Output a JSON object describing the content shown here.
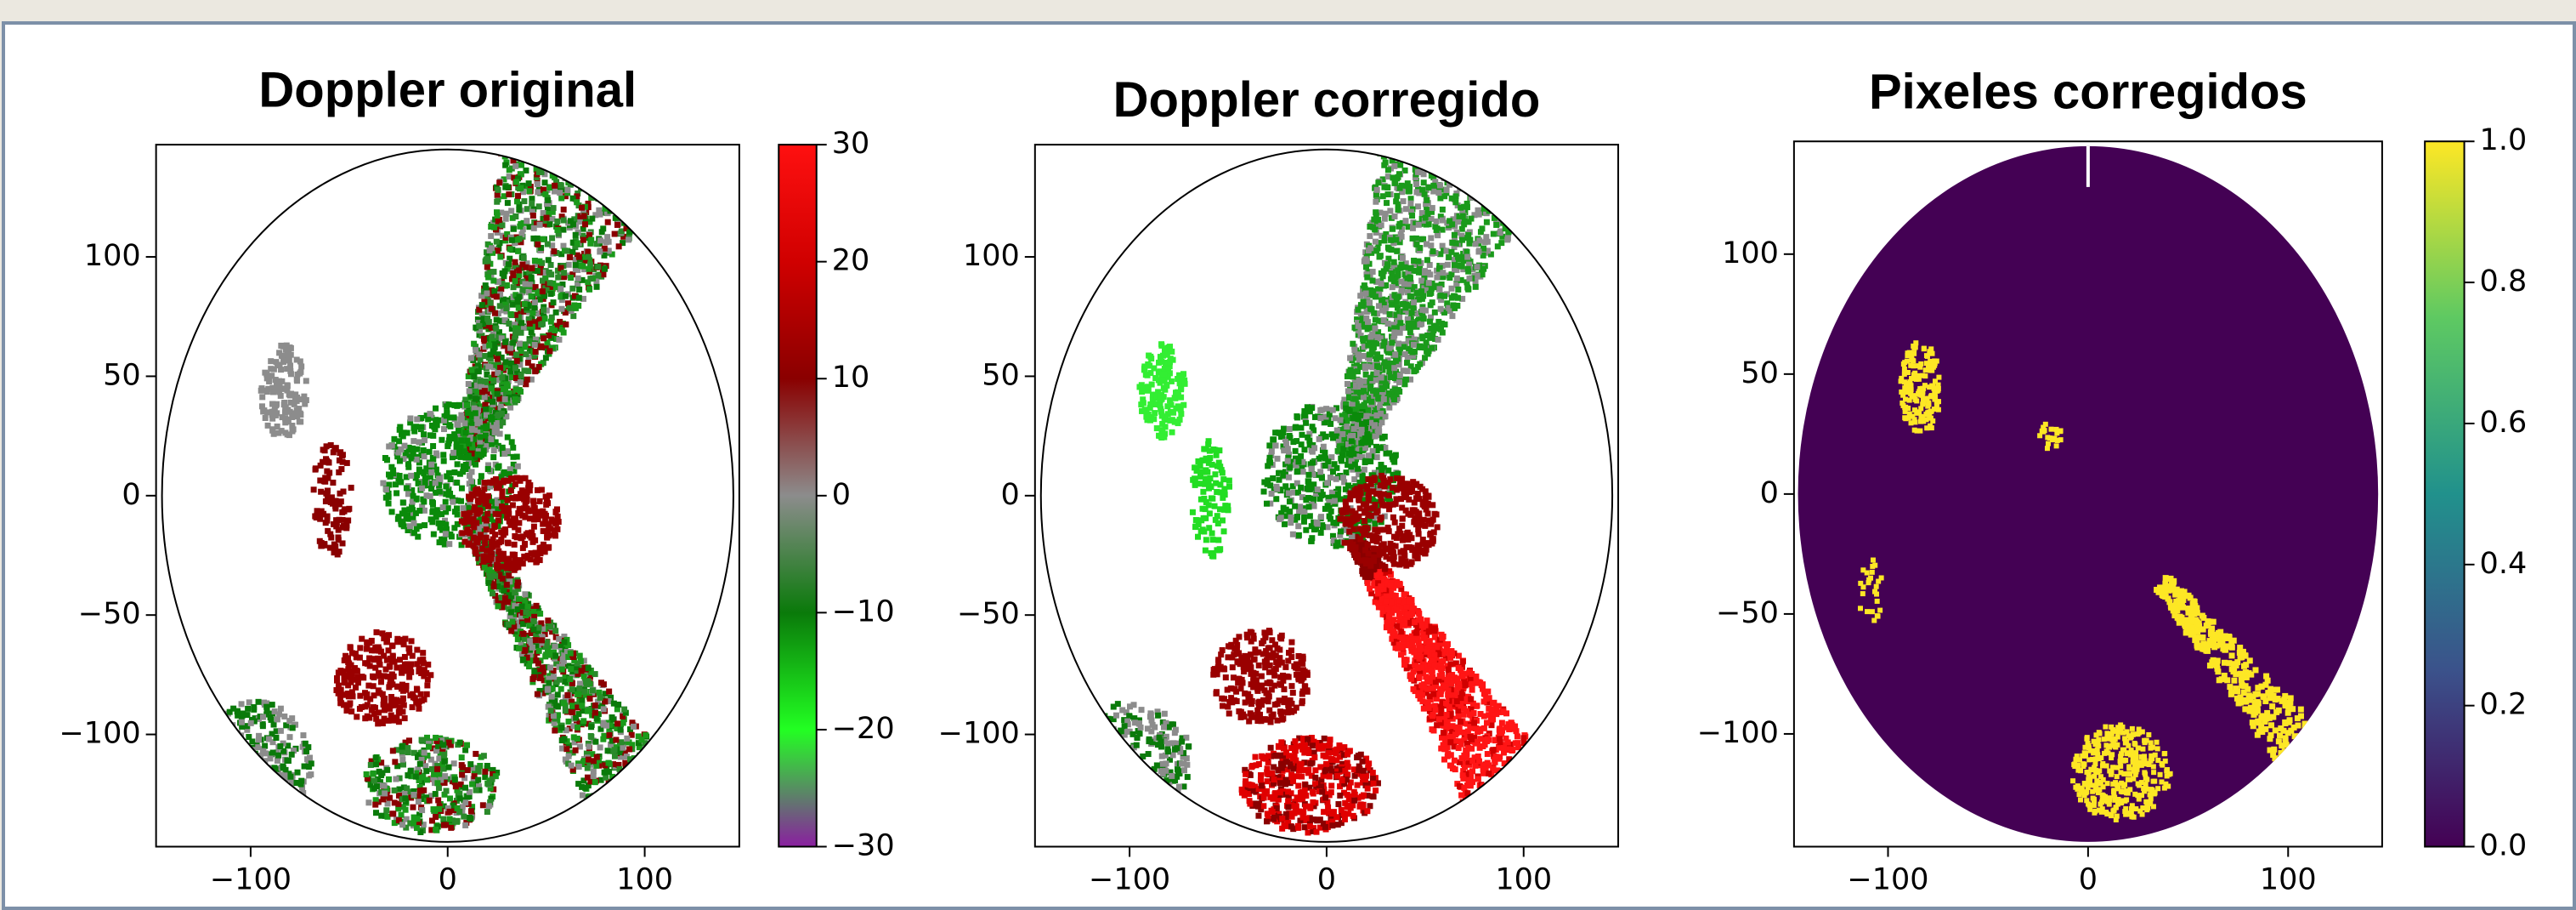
{
  "chart_data": [
    {
      "type": "image",
      "title": "Doppler original",
      "xlim": [
        -148,
        148
      ],
      "ylim": [
        -147,
        147
      ],
      "xticks": [
        {
          "value": -100,
          "label": "−100"
        },
        0,
        100
      ],
      "yticks": [
        {
          "value": -100,
          "label": "−100"
        },
        {
          "value": -50,
          "label": "−50"
        },
        0,
        50,
        100
      ],
      "colorbar": {
        "lim": [
          -30,
          30
        ],
        "ticks": [
          {
            "value": -30,
            "label": "−30"
          },
          {
            "value": -20,
            "label": "−20"
          },
          {
            "value": -10,
            "label": "−10"
          },
          0,
          10,
          20,
          30
        ],
        "colors": [
          "#8a1fa0",
          "#22ff22",
          "#0a7a0a",
          "#8c8c8c",
          "#8a0000",
          "#d00000",
          "#ff1010"
        ]
      }
    },
    {
      "type": "image",
      "title": "Doppler corregido",
      "xlim": [
        -148,
        148
      ],
      "ylim": [
        -147,
        147
      ],
      "xticks": [
        {
          "value": -100,
          "label": "−100"
        },
        0,
        100
      ],
      "yticks": [
        {
          "value": -100,
          "label": "−100"
        },
        {
          "value": -50,
          "label": "−50"
        },
        0,
        50,
        100
      ]
    },
    {
      "type": "image",
      "title": "Pixeles corregidos",
      "xlim": [
        -147,
        147
      ],
      "ylim": [
        -147,
        147
      ],
      "xticks": [
        {
          "value": -100,
          "label": "−100"
        },
        0,
        100
      ],
      "yticks": [
        {
          "value": -100,
          "label": "−100"
        },
        {
          "value": -50,
          "label": "−50"
        },
        0,
        50,
        100
      ],
      "colorbar": {
        "lim": [
          0,
          1
        ],
        "ticks": [
          {
            "value": 0,
            "label": "0.0"
          },
          {
            "value": 0.2,
            "label": "0.2"
          },
          {
            "value": 0.4,
            "label": "0.4"
          },
          {
            "value": 0.6,
            "label": "0.6"
          },
          {
            "value": 0.8,
            "label": "0.8"
          },
          {
            "value": 1,
            "label": "1.0"
          }
        ],
        "colors": [
          "#440154",
          "#3b528b",
          "#21918c",
          "#5ec962",
          "#fde725"
        ]
      }
    }
  ]
}
